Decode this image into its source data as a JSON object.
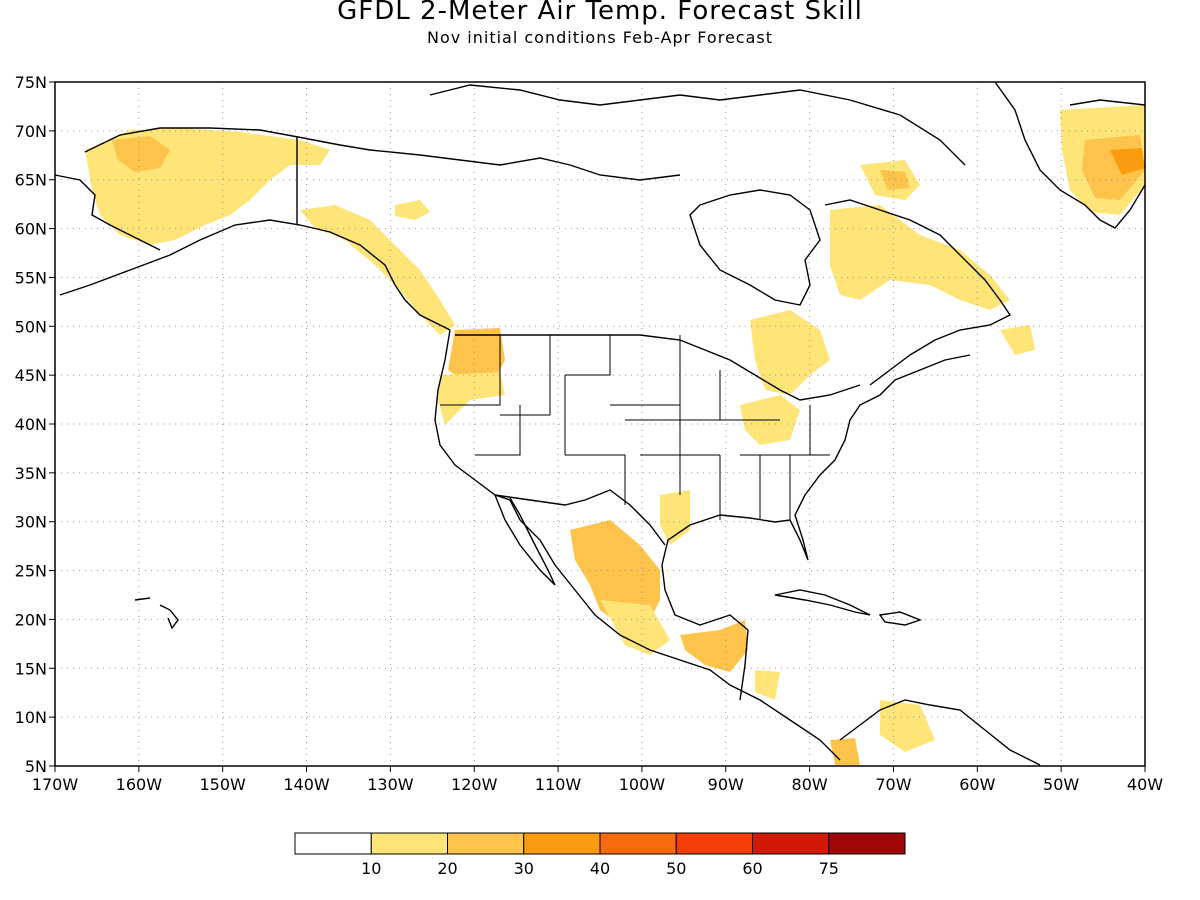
{
  "title": "GFDL 2-Meter Air Temp. Forecast Skill",
  "subtitle": "Nov initial conditions   Feb-Apr Forecast",
  "map": {
    "lon_range": [
      -170,
      -40
    ],
    "lat_range": [
      5,
      75
    ],
    "lon_ticks": [
      "170W",
      "160W",
      "150W",
      "140W",
      "130W",
      "120W",
      "110W",
      "100W",
      "90W",
      "80W",
      "70W",
      "60W",
      "50W",
      "40W"
    ],
    "lat_ticks": [
      "5N",
      "10N",
      "15N",
      "20N",
      "25N",
      "30N",
      "35N",
      "40N",
      "45N",
      "50N",
      "55N",
      "60N",
      "65N",
      "70N",
      "75N"
    ],
    "grid": "dotted"
  },
  "colorbar": {
    "labels": [
      "10",
      "20",
      "30",
      "40",
      "50",
      "60",
      "75"
    ],
    "colors": [
      "#ffffff",
      "#ffe478",
      "#fdc34a",
      "#fa9c0e",
      "#f86a0c",
      "#f43d07",
      "#d11a06",
      "#a00606"
    ]
  },
  "skill_regions": [
    {
      "name": "alaska-west",
      "level": 1
    },
    {
      "name": "alaska-north-slope",
      "level": 2
    },
    {
      "name": "pacific-northwest-coast",
      "level": 1
    },
    {
      "name": "washington",
      "level": 2
    },
    {
      "name": "hudson-bay-east",
      "level": 1
    },
    {
      "name": "greenland-east",
      "level": 2
    },
    {
      "name": "mexico-central",
      "level": 2
    },
    {
      "name": "central-america",
      "level": 2
    }
  ]
}
